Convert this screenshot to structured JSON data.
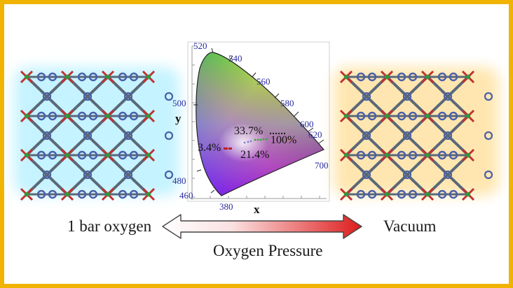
{
  "colors": {
    "frame": "#f0b400",
    "left_glow": "#7fe0ff",
    "right_glow": "#ffd070",
    "arrow_start": "#ffffff",
    "arrow_end": "#e02020",
    "tick_label": "#2a2aa0"
  },
  "labels": {
    "left": "1 bar oxygen",
    "right": "Vacuum",
    "axis_arrow": "Oxygen Pressure"
  },
  "cie": {
    "x_axis": "x",
    "y_axis": "y",
    "wavelengths": [
      "520",
      "540",
      "560",
      "580",
      "600",
      "620",
      "700",
      "500",
      "480",
      "460",
      "380"
    ],
    "annotations": [
      "33.7%",
      "3.4%",
      "100%",
      "21.4%"
    ]
  },
  "icons": [
    "mof-lattice-icon",
    "double-headed-gradient-arrow-icon",
    "cie-chromaticity-diagram"
  ]
}
